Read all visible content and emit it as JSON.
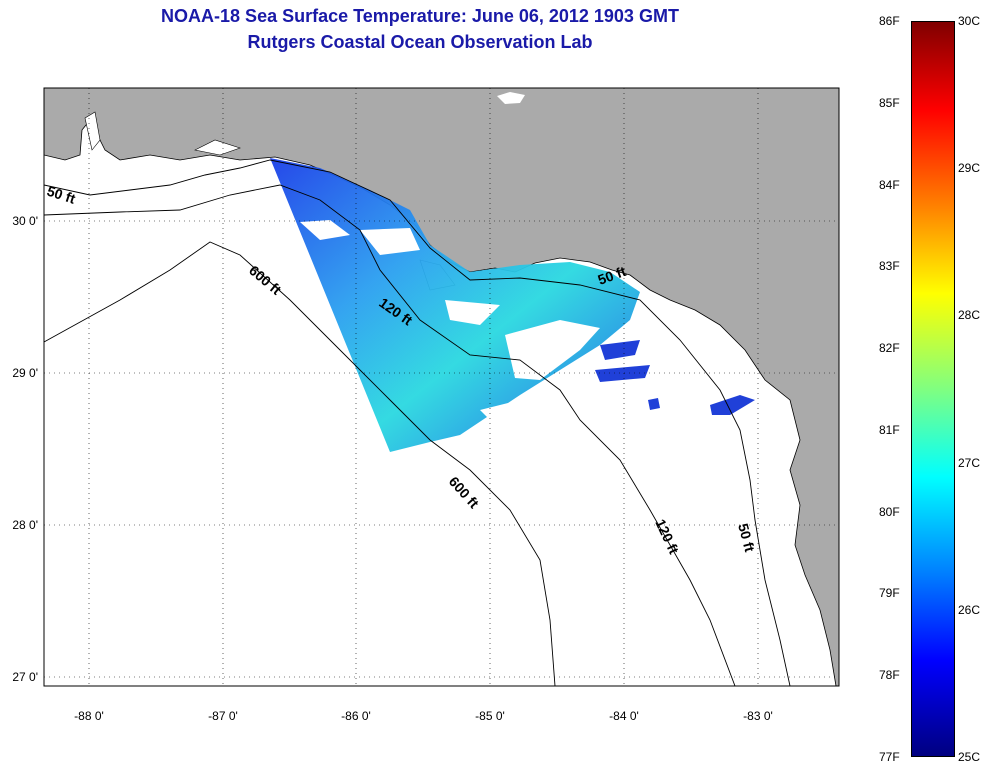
{
  "title": {
    "line1": "NOAA-18 Sea Surface Temperature:  June 06, 2012 1903 GMT",
    "line2": "Rutgers Coastal Ocean Observation Lab"
  },
  "map": {
    "longitude_labels": [
      "-88 0'",
      "-87 0'",
      "-86 0'",
      "-85 0'",
      "-84 0'",
      "-83 0'"
    ],
    "latitude_labels": [
      "30 0'",
      "29 0'",
      "28 0'",
      "27 0'"
    ],
    "contour_labels": [
      "50 ft",
      "600 ft",
      "120 ft",
      "50 ft",
      "600 ft",
      "120 ft",
      "50 ft"
    ],
    "colors": {
      "land": "#aaaaaa",
      "ocean": "#ffffff",
      "title": "#1a1aa8"
    }
  },
  "colorbar": {
    "fahrenheit_labels": [
      "86F",
      "85F",
      "84F",
      "83F",
      "82F",
      "81F",
      "80F",
      "79F",
      "78F",
      "77F"
    ],
    "celsius_labels": [
      "30C",
      "29C",
      "28C",
      "27C",
      "26C",
      "25C"
    ],
    "range_c": [
      25,
      30
    ],
    "range_f": [
      77,
      86
    ],
    "colormap": "jet"
  }
}
